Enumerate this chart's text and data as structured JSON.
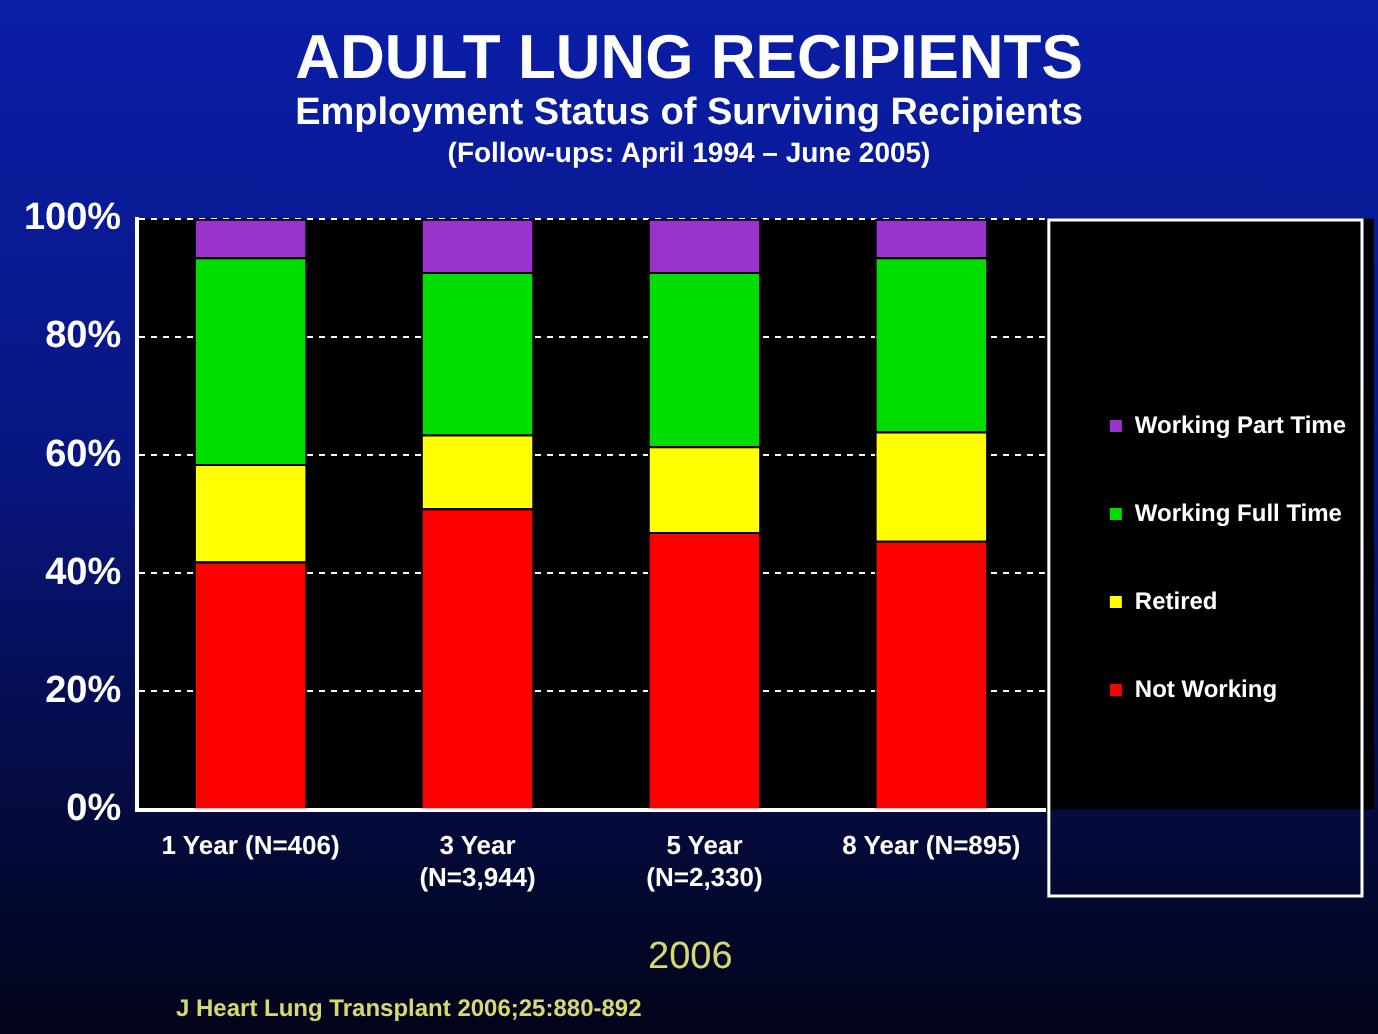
{
  "chart_data": {
    "type": "bar",
    "title": "ADULT LUNG RECIPIENTS",
    "subtitle": "Employment Status of Surviving Recipients\n(Follow-ups: April 1994 – June 2005)",
    "categories": [
      "1 Year (N=406)",
      "3 Year\n(N=3,944)",
      "5 Year\n(N=2,330)",
      "8 Year (N=895)"
    ],
    "stacked": true,
    "series": [
      {
        "name": "Not Working",
        "color": "#ff0000",
        "values": [
          42,
          51,
          47,
          45.5
        ]
      },
      {
        "name": "Retired",
        "color": "#ffff00",
        "values": [
          16.5,
          12.5,
          14.5,
          18.5
        ]
      },
      {
        "name": "Working Full Time",
        "color": "#00dd00",
        "values": [
          35,
          27.5,
          29.5,
          29.5
        ]
      },
      {
        "name": "Working Part Time",
        "color": "#9933cc",
        "values": [
          6.5,
          9,
          9,
          6.5
        ]
      }
    ],
    "ylim": [
      0,
      100
    ],
    "yticks": [
      {
        "value": 0,
        "label": "0%"
      },
      {
        "value": 20,
        "label": "20%"
      },
      {
        "value": 40,
        "label": "40%"
      },
      {
        "value": 60,
        "label": "60%"
      },
      {
        "value": 80,
        "label": "80%"
      },
      {
        "value": 100,
        "label": "100%"
      }
    ],
    "grid": "y",
    "legend": "right",
    "annotations": [
      "2006",
      "J Heart Lung Transplant 2006;25:880-892"
    ]
  }
}
